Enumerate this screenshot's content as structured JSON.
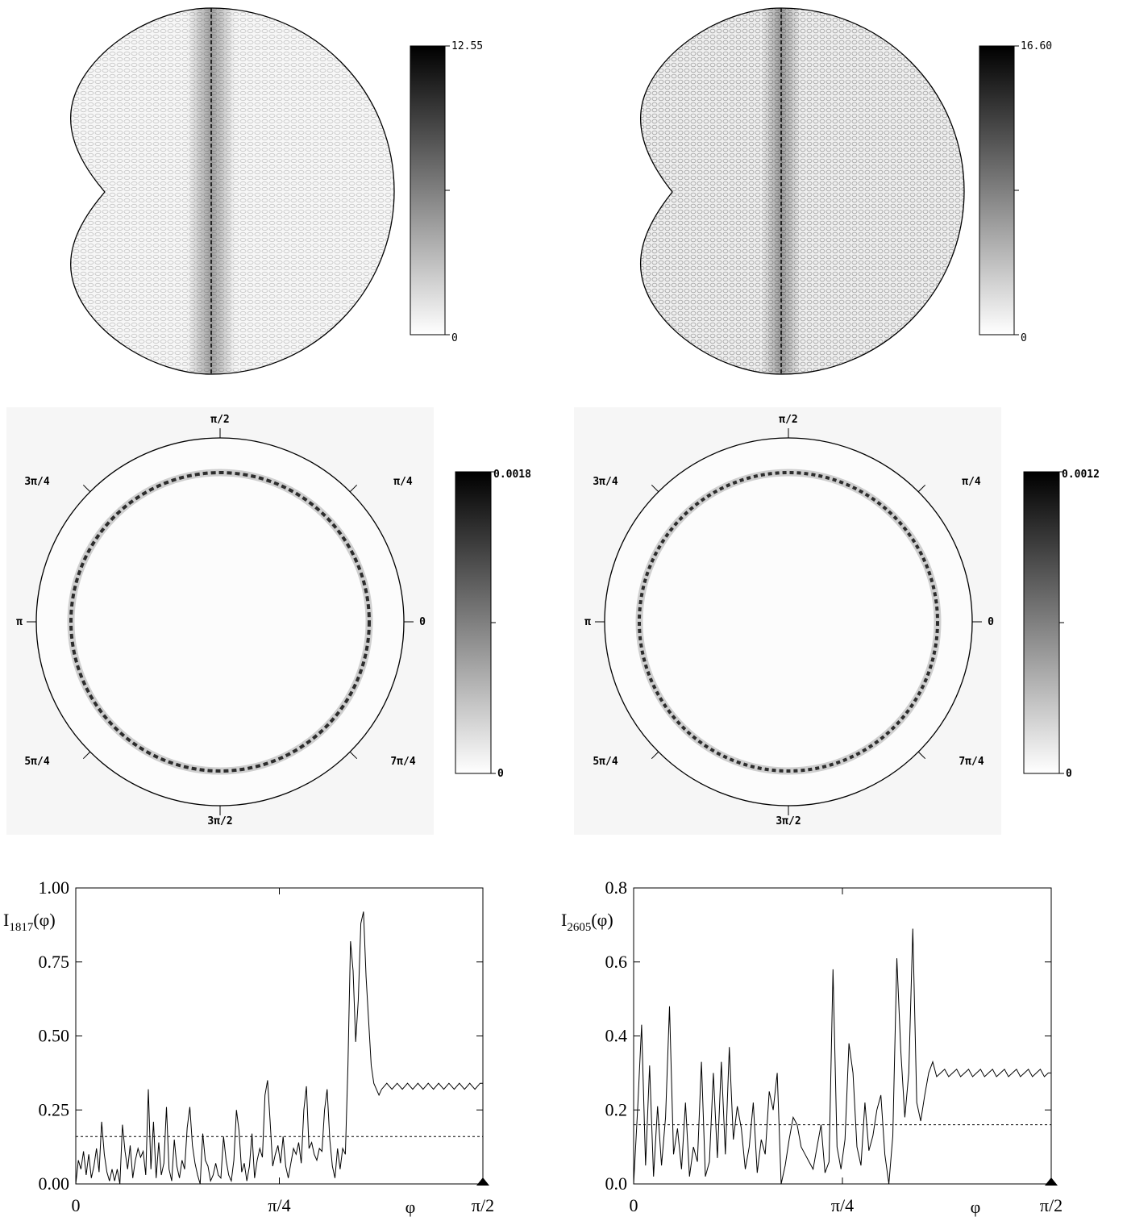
{
  "chart_data": [
    {
      "type": "heatmap",
      "panel": "top-left",
      "colorbar": {
        "max_label": "12.55",
        "min_label": "0",
        "min": 0,
        "max": 12.55
      }
    },
    {
      "type": "heatmap",
      "panel": "top-right",
      "colorbar": {
        "max_label": "16.60",
        "min_label": "0",
        "min": 0,
        "max": 16.6
      }
    },
    {
      "type": "heatmap",
      "panel": "middle-left",
      "angle_labels": {
        "top": "π/2",
        "top_left": "3π/4",
        "top_right": "π/4",
        "left": "π",
        "right": "0",
        "bottom_left": "5π/4",
        "bottom_right": "7π/4",
        "bottom": "3π/2"
      },
      "colorbar": {
        "max_label": "0.0018",
        "min_label": "0",
        "min": 0,
        "max": 0.0018
      }
    },
    {
      "type": "heatmap",
      "panel": "middle-right",
      "angle_labels": {
        "top": "π/2",
        "top_left": "3π/4",
        "top_right": "π/4",
        "left": "π",
        "right": "0",
        "bottom_left": "5π/4",
        "bottom_right": "7π/4",
        "bottom": "3π/2"
      },
      "colorbar": {
        "max_label": "0.0012",
        "min_label": "0",
        "min": 0,
        "max": 0.0012
      }
    },
    {
      "type": "line",
      "panel": "bottom-left",
      "ylabel_base": "I",
      "ylabel_sub": "1817",
      "ylabel_tail": "(φ)",
      "xlabel": "φ",
      "xlim": [
        0,
        1.5708
      ],
      "ylim": [
        0,
        1.0
      ],
      "xticks": [
        "0",
        "π/4",
        "π/2"
      ],
      "yticks": [
        "0.00",
        "0.25",
        "0.50",
        "0.75",
        "1.00"
      ],
      "reference_line": 0.16,
      "x": [
        0.0,
        0.01,
        0.02,
        0.03,
        0.04,
        0.05,
        0.06,
        0.07,
        0.08,
        0.09,
        0.1,
        0.11,
        0.12,
        0.13,
        0.14,
        0.15,
        0.16,
        0.17,
        0.18,
        0.19,
        0.2,
        0.21,
        0.22,
        0.23,
        0.24,
        0.25,
        0.26,
        0.27,
        0.28,
        0.29,
        0.3,
        0.31,
        0.32,
        0.33,
        0.34,
        0.35,
        0.36,
        0.37,
        0.38,
        0.39,
        0.4,
        0.41,
        0.42,
        0.43,
        0.44,
        0.45,
        0.46,
        0.47,
        0.48,
        0.49,
        0.5,
        0.51,
        0.52,
        0.53,
        0.54,
        0.55,
        0.56,
        0.57,
        0.58,
        0.59,
        0.6,
        0.61,
        0.62,
        0.63,
        0.64,
        0.65,
        0.66,
        0.67,
        0.68,
        0.69,
        0.7,
        0.71,
        0.72,
        0.73,
        0.74,
        0.75,
        0.76,
        0.77,
        0.78,
        0.79,
        0.8,
        0.81,
        0.82,
        0.83,
        0.84,
        0.85,
        0.86,
        0.87,
        0.88,
        0.89,
        0.9,
        0.91,
        0.92,
        0.93,
        0.94,
        0.95,
        0.96,
        0.97,
        0.98,
        0.99,
        1.0,
        1.01,
        1.02,
        1.03,
        1.04,
        1.05,
        1.06,
        1.07,
        1.08,
        1.09,
        1.1,
        1.11,
        1.12,
        1.13,
        1.14,
        1.15,
        1.16,
        1.17,
        1.18,
        1.19,
        1.2,
        1.21,
        1.22,
        1.23,
        1.24,
        1.25,
        1.26,
        1.27,
        1.28,
        1.29,
        1.3,
        1.31,
        1.32,
        1.33,
        1.34,
        1.35,
        1.36,
        1.37,
        1.38,
        1.39,
        1.4,
        1.41,
        1.42,
        1.43,
        1.44,
        1.45,
        1.46,
        1.47,
        1.48,
        1.49,
        1.5,
        1.51,
        1.52,
        1.53,
        1.54,
        1.55,
        1.56,
        1.571
      ],
      "y": [
        0.0,
        0.08,
        0.05,
        0.11,
        0.03,
        0.1,
        0.02,
        0.06,
        0.12,
        0.04,
        0.21,
        0.1,
        0.04,
        0.01,
        0.05,
        0.01,
        0.05,
        0.0,
        0.2,
        0.11,
        0.05,
        0.13,
        0.02,
        0.08,
        0.12,
        0.09,
        0.11,
        0.03,
        0.32,
        0.05,
        0.21,
        0.02,
        0.14,
        0.03,
        0.07,
        0.26,
        0.05,
        0.01,
        0.15,
        0.06,
        0.02,
        0.08,
        0.05,
        0.19,
        0.26,
        0.13,
        0.07,
        0.03,
        0.0,
        0.17,
        0.08,
        0.06,
        0.01,
        0.03,
        0.07,
        0.03,
        0.02,
        0.16,
        0.08,
        0.03,
        0.01,
        0.08,
        0.25,
        0.18,
        0.04,
        0.07,
        0.01,
        0.06,
        0.17,
        0.02,
        0.08,
        0.12,
        0.09,
        0.3,
        0.35,
        0.21,
        0.06,
        0.1,
        0.13,
        0.07,
        0.16,
        0.06,
        0.02,
        0.07,
        0.12,
        0.1,
        0.14,
        0.07,
        0.25,
        0.33,
        0.12,
        0.14,
        0.1,
        0.08,
        0.12,
        0.11,
        0.25,
        0.32,
        0.15,
        0.06,
        0.02,
        0.12,
        0.05,
        0.12,
        0.1,
        0.4,
        0.82,
        0.72,
        0.48,
        0.62,
        0.88,
        0.92,
        0.7,
        0.55,
        0.4,
        0.34,
        0.32,
        0.3,
        0.32,
        0.33,
        0.34,
        0.33,
        0.32,
        0.33,
        0.34,
        0.33,
        0.32,
        0.33,
        0.34,
        0.33,
        0.32,
        0.33,
        0.34,
        0.33,
        0.32,
        0.33,
        0.34,
        0.33,
        0.32,
        0.33,
        0.34,
        0.33,
        0.32,
        0.33,
        0.34,
        0.33,
        0.32,
        0.33,
        0.34,
        0.33,
        0.32,
        0.33,
        0.34,
        0.33,
        0.32,
        0.33,
        0.34,
        0.34
      ]
    },
    {
      "type": "line",
      "panel": "bottom-right",
      "ylabel_base": "I",
      "ylabel_sub": "2605",
      "ylabel_tail": "(φ)",
      "xlabel": "φ",
      "xlim": [
        0,
        1.5708
      ],
      "ylim": [
        0,
        0.8
      ],
      "xticks": [
        "0",
        "π/4",
        "π/2"
      ],
      "yticks": [
        "0.0",
        "0.2",
        "0.4",
        "0.6",
        "0.8"
      ],
      "reference_line": 0.16,
      "x": [
        0.0,
        0.015,
        0.03,
        0.045,
        0.06,
        0.075,
        0.09,
        0.105,
        0.12,
        0.135,
        0.15,
        0.165,
        0.18,
        0.195,
        0.21,
        0.225,
        0.24,
        0.255,
        0.27,
        0.285,
        0.3,
        0.315,
        0.33,
        0.345,
        0.36,
        0.375,
        0.39,
        0.405,
        0.42,
        0.435,
        0.45,
        0.465,
        0.48,
        0.495,
        0.51,
        0.525,
        0.54,
        0.555,
        0.57,
        0.585,
        0.6,
        0.615,
        0.63,
        0.645,
        0.66,
        0.675,
        0.69,
        0.705,
        0.72,
        0.735,
        0.75,
        0.765,
        0.78,
        0.795,
        0.81,
        0.825,
        0.84,
        0.855,
        0.87,
        0.885,
        0.9,
        0.915,
        0.93,
        0.945,
        0.96,
        0.975,
        0.99,
        1.005,
        1.02,
        1.035,
        1.05,
        1.065,
        1.08,
        1.095,
        1.11,
        1.125,
        1.14,
        1.155,
        1.17,
        1.185,
        1.2,
        1.215,
        1.23,
        1.245,
        1.26,
        1.275,
        1.29,
        1.305,
        1.32,
        1.335,
        1.35,
        1.365,
        1.38,
        1.395,
        1.41,
        1.425,
        1.44,
        1.455,
        1.47,
        1.485,
        1.5,
        1.515,
        1.53,
        1.545,
        1.56,
        1.571
      ],
      "y": [
        0.0,
        0.2,
        0.43,
        0.05,
        0.32,
        0.02,
        0.21,
        0.05,
        0.18,
        0.48,
        0.08,
        0.15,
        0.04,
        0.22,
        0.02,
        0.1,
        0.06,
        0.33,
        0.02,
        0.06,
        0.3,
        0.07,
        0.33,
        0.08,
        0.37,
        0.12,
        0.21,
        0.15,
        0.04,
        0.1,
        0.22,
        0.03,
        0.12,
        0.08,
        0.25,
        0.2,
        0.3,
        0.0,
        0.05,
        0.12,
        0.18,
        0.16,
        0.1,
        0.08,
        0.06,
        0.04,
        0.1,
        0.16,
        0.03,
        0.06,
        0.58,
        0.1,
        0.04,
        0.12,
        0.38,
        0.3,
        0.1,
        0.05,
        0.22,
        0.09,
        0.13,
        0.2,
        0.24,
        0.08,
        0.0,
        0.13,
        0.61,
        0.36,
        0.18,
        0.3,
        0.69,
        0.22,
        0.17,
        0.24,
        0.3,
        0.33,
        0.29,
        0.3,
        0.31,
        0.29,
        0.3,
        0.31,
        0.29,
        0.3,
        0.31,
        0.29,
        0.3,
        0.31,
        0.29,
        0.3,
        0.31,
        0.29,
        0.3,
        0.31,
        0.29,
        0.3,
        0.31,
        0.29,
        0.3,
        0.31,
        0.29,
        0.3,
        0.31,
        0.29,
        0.3,
        0.3
      ]
    }
  ]
}
